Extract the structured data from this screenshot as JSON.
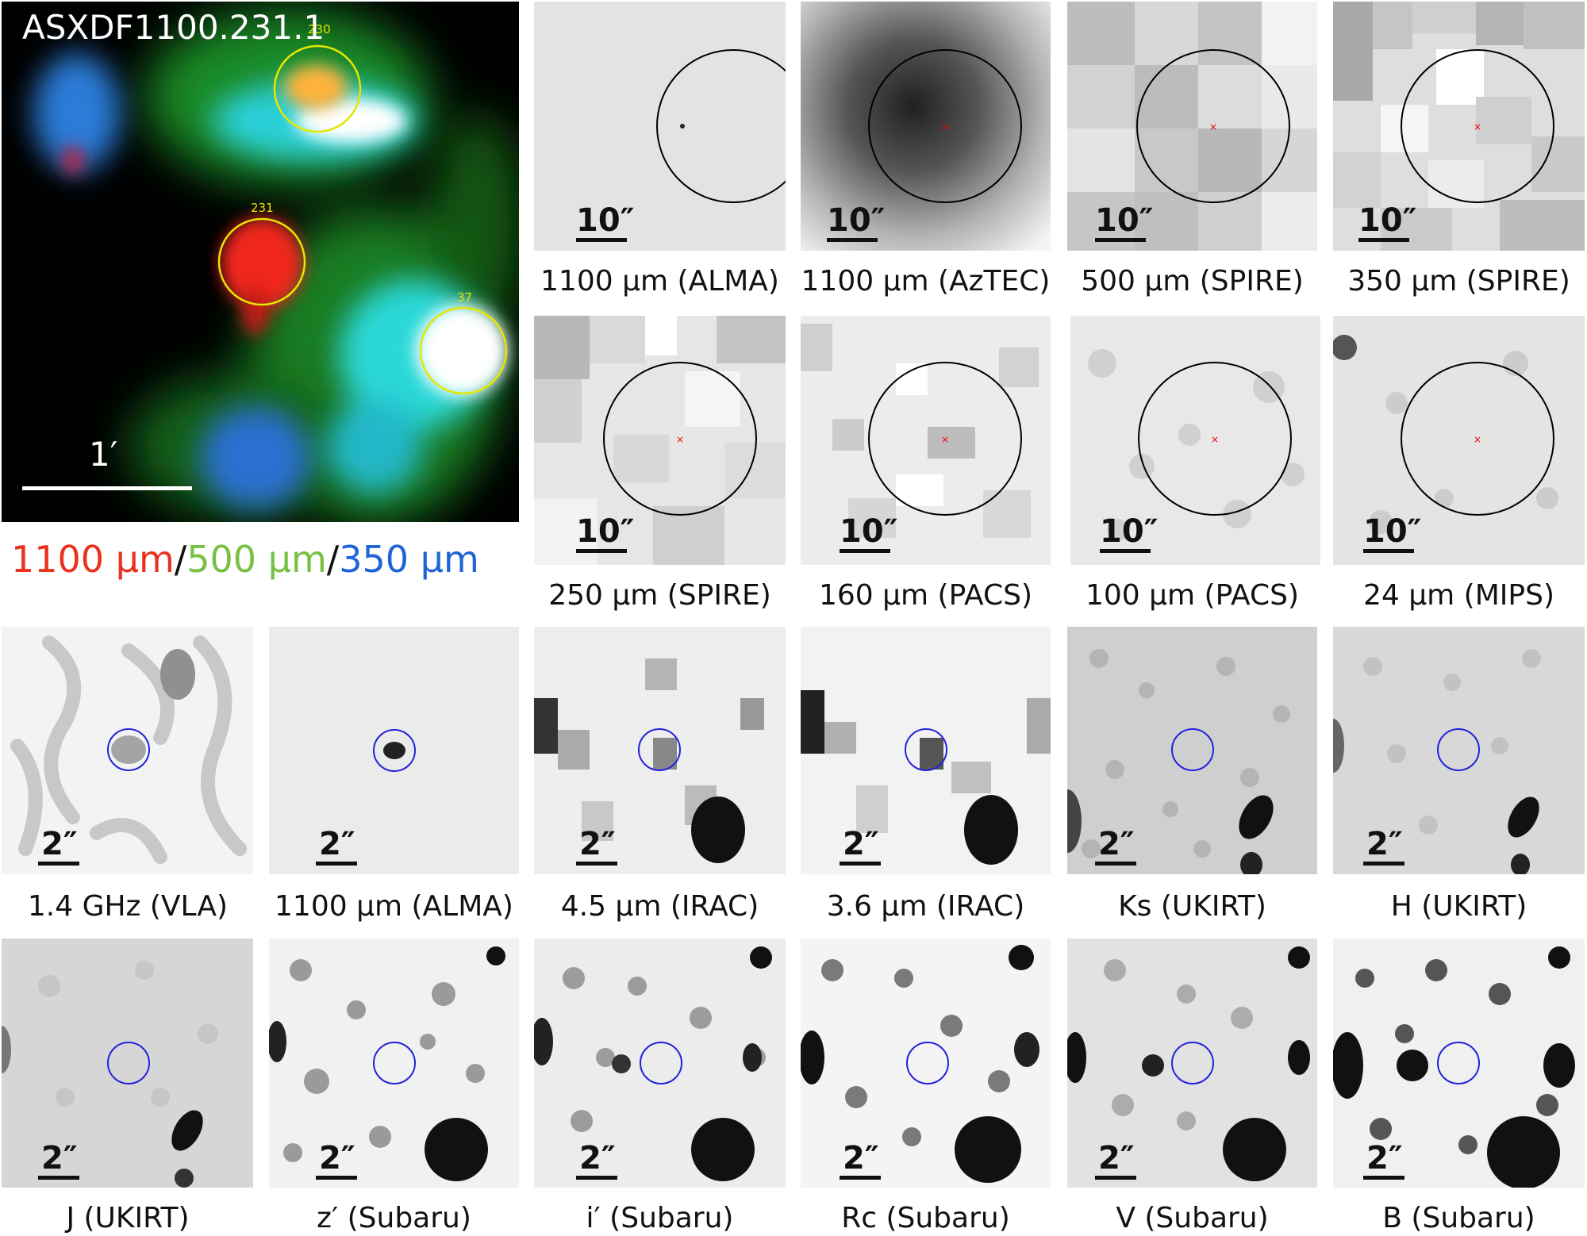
{
  "rgb_panel": {
    "title": "ASXDF1100.231.1",
    "scale_label": "1′",
    "circle_labels": [
      "230",
      "231",
      "37"
    ],
    "legend": {
      "red": "1100 µm",
      "sep1": "/",
      "green": "500 µm",
      "sep2": "/",
      "blue": "350 µm"
    },
    "legend_colors": {
      "red": "#e8321e",
      "green": "#77c043",
      "blue": "#1f64d6"
    }
  },
  "row1": [
    {
      "caption": "1100 µm (ALMA)",
      "scale": "10″"
    },
    {
      "caption": "1100 µm (AzTEC)",
      "scale": "10″"
    },
    {
      "caption": "500 µm (SPIRE)",
      "scale": "10″"
    },
    {
      "caption": "350 µm (SPIRE)",
      "scale": "10″"
    }
  ],
  "row2": [
    {
      "caption": "250 µm (SPIRE)",
      "scale": "10″"
    },
    {
      "caption": "160 µm (PACS)",
      "scale": "10″"
    },
    {
      "caption": "100 µm (PACS)",
      "scale": "10″"
    },
    {
      "caption": "24 µm (MIPS)",
      "scale": "10″"
    }
  ],
  "row3": [
    {
      "caption": "1.4 GHz (VLA)",
      "scale": "2″"
    },
    {
      "caption": "1100 µm (ALMA)",
      "scale": "2″"
    },
    {
      "caption": "4.5 µm (IRAC)",
      "scale": "2″"
    },
    {
      "caption": "3.6 µm (IRAC)",
      "scale": "2″"
    },
    {
      "caption": "Ks (UKIRT)",
      "scale": "2″"
    },
    {
      "caption": "H (UKIRT)",
      "scale": "2″"
    }
  ],
  "row4": [
    {
      "caption": "J (UKIRT)",
      "scale": "2″"
    },
    {
      "caption": "z′ (Subaru)",
      "scale": "2″"
    },
    {
      "caption": "i′ (Subaru)",
      "scale": "2″"
    },
    {
      "caption": "Rc (Subaru)",
      "scale": "2″"
    },
    {
      "caption": "V (Subaru)",
      "scale": "2″"
    },
    {
      "caption": "B (Subaru)",
      "scale": "2″"
    }
  ]
}
